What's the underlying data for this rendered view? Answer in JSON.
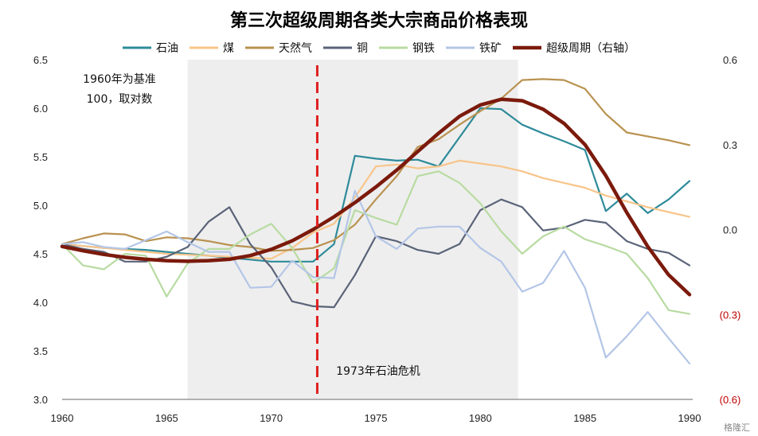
{
  "chart_data": {
    "type": "line",
    "title": "第三次超级周期各类大宗商品价格表现",
    "left_axis": {
      "ylim": [
        3.0,
        6.5
      ],
      "ticks": [
        "3.0",
        "3.5",
        "4.0",
        "4.5",
        "5.0",
        "5.5",
        "6.0",
        "6.5"
      ]
    },
    "right_axis": {
      "ylim": [
        -0.6,
        0.6
      ],
      "ticks": [
        {
          "label": "0.6",
          "value": 0.6,
          "negative": false
        },
        {
          "label": "0.3",
          "value": 0.3,
          "negative": false
        },
        {
          "label": "0.0",
          "value": 0.0,
          "negative": false
        },
        {
          "label": "(0.3)",
          "value": -0.3,
          "negative": true
        },
        {
          "label": "(0.6)",
          "value": -0.6,
          "negative": true
        }
      ]
    },
    "xlim": [
      1960,
      1990
    ],
    "x_ticks": [
      "1960",
      "1965",
      "1970",
      "1975",
      "1980",
      "1985",
      "1990"
    ],
    "annotations": {
      "base_note_line1": "1960年为基准",
      "base_note_line2": "100，取对数",
      "oil_crisis": "1973年石油危机"
    },
    "shaded_range": [
      1966,
      1981.8
    ],
    "event_line_x": 1972.2,
    "years": [
      1960,
      1961,
      1962,
      1963,
      1964,
      1965,
      1966,
      1967,
      1968,
      1969,
      1970,
      1971,
      1972,
      1973,
      1974,
      1975,
      1976,
      1977,
      1978,
      1979,
      1980,
      1981,
      1982,
      1983,
      1984,
      1985,
      1986,
      1987,
      1988,
      1989,
      1990
    ],
    "series": [
      {
        "name": "石油",
        "color": "#2e8b9a",
        "width": 2.2,
        "axis": "left",
        "values": [
          4.6,
          4.58,
          4.56,
          4.55,
          4.54,
          4.52,
          4.5,
          4.48,
          4.46,
          4.44,
          4.42,
          4.42,
          4.42,
          4.6,
          5.51,
          5.48,
          5.46,
          5.47,
          5.4,
          5.7,
          6.0,
          5.99,
          5.83,
          5.74,
          5.66,
          5.57,
          4.94,
          5.12,
          4.92,
          5.06,
          5.25
        ]
      },
      {
        "name": "煤",
        "color": "#f8c58a",
        "width": 2.2,
        "axis": "left",
        "values": [
          4.6,
          4.58,
          4.56,
          4.54,
          4.52,
          4.5,
          4.49,
          4.48,
          4.47,
          4.46,
          4.45,
          4.56,
          4.72,
          4.81,
          5.08,
          5.4,
          5.42,
          5.38,
          5.4,
          5.46,
          5.43,
          5.4,
          5.35,
          5.28,
          5.23,
          5.18,
          5.1,
          5.04,
          4.98,
          4.93,
          4.88
        ]
      },
      {
        "name": "天然气",
        "color": "#b99250",
        "width": 2.2,
        "axis": "left",
        "values": [
          4.6,
          4.66,
          4.71,
          4.7,
          4.63,
          4.67,
          4.66,
          4.63,
          4.59,
          4.57,
          4.53,
          4.54,
          4.56,
          4.64,
          4.8,
          5.06,
          5.3,
          5.6,
          5.68,
          5.83,
          5.97,
          6.1,
          6.29,
          6.3,
          6.29,
          6.2,
          5.94,
          5.75,
          5.71,
          5.67,
          5.62
        ]
      },
      {
        "name": "铜",
        "color": "#5a6378",
        "width": 2.2,
        "axis": "left",
        "values": [
          4.6,
          4.55,
          4.52,
          4.42,
          4.42,
          4.47,
          4.57,
          4.83,
          4.98,
          4.6,
          4.36,
          4.01,
          3.96,
          3.95,
          4.28,
          4.68,
          4.63,
          4.54,
          4.5,
          4.6,
          4.95,
          5.06,
          4.98,
          4.74,
          4.77,
          4.85,
          4.82,
          4.63,
          4.55,
          4.51,
          4.38
        ]
      },
      {
        "name": "钢铁",
        "color": "#b8dba1",
        "width": 2.2,
        "axis": "left",
        "values": [
          4.6,
          4.38,
          4.34,
          4.5,
          4.48,
          4.06,
          4.4,
          4.55,
          4.55,
          4.7,
          4.81,
          4.56,
          4.2,
          4.35,
          4.95,
          4.87,
          4.8,
          5.3,
          5.35,
          5.23,
          5.02,
          4.73,
          4.5,
          4.68,
          4.78,
          4.65,
          4.58,
          4.5,
          4.25,
          3.92,
          3.88
        ]
      },
      {
        "name": "铁矿",
        "color": "#b4c6e7",
        "width": 2.2,
        "axis": "left",
        "values": [
          4.6,
          4.62,
          4.57,
          4.55,
          4.64,
          4.73,
          4.62,
          4.52,
          4.52,
          4.15,
          4.16,
          4.43,
          4.26,
          4.25,
          5.15,
          4.68,
          4.55,
          4.76,
          4.78,
          4.78,
          4.56,
          4.42,
          4.11,
          4.2,
          4.53,
          4.15,
          3.43,
          3.65,
          3.9,
          3.63,
          3.37
        ]
      },
      {
        "name": "超级周期（右轴）",
        "color": "#7b1a0c",
        "width": 4.5,
        "axis": "right",
        "values": [
          -0.06,
          -0.075,
          -0.088,
          -0.098,
          -0.105,
          -0.11,
          -0.112,
          -0.11,
          -0.105,
          -0.092,
          -0.07,
          -0.04,
          0.0,
          0.045,
          0.095,
          0.15,
          0.21,
          0.275,
          0.34,
          0.4,
          0.44,
          0.46,
          0.455,
          0.425,
          0.375,
          0.3,
          0.19,
          0.06,
          -0.06,
          -0.16,
          -0.23
        ]
      }
    ]
  },
  "watermark": "格隆汇"
}
